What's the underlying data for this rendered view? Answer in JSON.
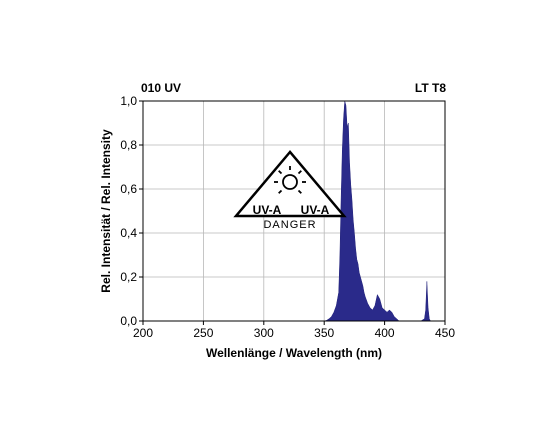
{
  "chart_data": {
    "type": "area",
    "title_left": "010 UV",
    "title_right": "LT T8",
    "xlabel": "Wellenlänge / Wavelength (nm)",
    "ylabel": "Rel. Intensität / Rel. Intensity",
    "xlim": [
      200,
      450
    ],
    "ylim": [
      0,
      1.0
    ],
    "x_ticks": [
      "200",
      "250",
      "300",
      "350",
      "400",
      "450"
    ],
    "y_ticks": [
      "0,0",
      "0,2",
      "0,4",
      "0,6",
      "0,8",
      "1,0"
    ],
    "grid": true,
    "fill_color": "#2a2a8a",
    "warning_label": {
      "left": "UV-A",
      "right": "UV-A",
      "bottom": "DANGER"
    },
    "series": [
      {
        "x": [
          350,
          352,
          354,
          356,
          358,
          360,
          362,
          363,
          364,
          365,
          366,
          367,
          368,
          369,
          370,
          371,
          372,
          373,
          374,
          375,
          376,
          377,
          378,
          379,
          380,
          381,
          382,
          383,
          384,
          386,
          388,
          390,
          392,
          394,
          396,
          398,
          400,
          402,
          404,
          406,
          408,
          410,
          412,
          420,
          430,
          433,
          434,
          435,
          436,
          437,
          438,
          440
        ],
        "y": [
          0.0,
          0.003,
          0.01,
          0.02,
          0.04,
          0.07,
          0.13,
          0.3,
          0.56,
          0.78,
          0.92,
          1.0,
          0.98,
          0.88,
          0.9,
          0.72,
          0.62,
          0.55,
          0.46,
          0.4,
          0.33,
          0.28,
          0.26,
          0.22,
          0.2,
          0.18,
          0.16,
          0.13,
          0.11,
          0.08,
          0.06,
          0.05,
          0.07,
          0.12,
          0.1,
          0.06,
          0.05,
          0.04,
          0.05,
          0.04,
          0.02,
          0.01,
          0.0,
          0.0,
          0.0,
          0.01,
          0.05,
          0.18,
          0.06,
          0.01,
          0.0,
          0.0
        ]
      }
    ]
  }
}
